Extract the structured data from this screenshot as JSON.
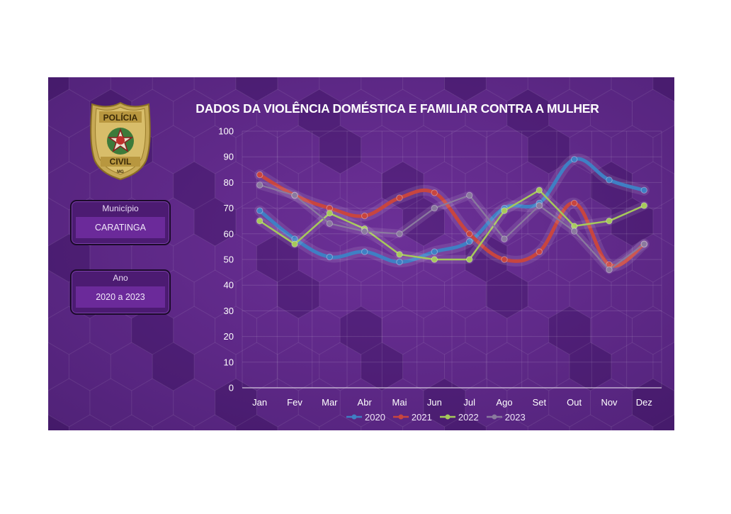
{
  "title": "DADOS DA VIOLÊNCIA DOMÉSTICA E FAMILIAR CONTRA A MULHER",
  "badge": {
    "top_text": "POLÍCIA",
    "bottom_text": "CIVIL",
    "state": "MG"
  },
  "filters": {
    "municipio": {
      "label": "Município",
      "value": "CARATINGA"
    },
    "ano": {
      "label": "Ano",
      "value": "2020 a 2023"
    }
  },
  "colors": {
    "background": "#5b2585",
    "series_2020": "#3f7fc4",
    "series_2021": "#c8453f",
    "series_2022": "#a6c95a",
    "series_2023": "#8a7a9e"
  },
  "chart_data": {
    "type": "line",
    "title": "DADOS DA VIOLÊNCIA DOMÉSTICA E FAMILIAR CONTRA A MULHER",
    "xlabel": "",
    "ylabel": "",
    "categories": [
      "Jan",
      "Fev",
      "Mar",
      "Abr",
      "Mai",
      "Jun",
      "Jul",
      "Ago",
      "Set",
      "Out",
      "Nov",
      "Dez"
    ],
    "ylim": [
      0,
      100
    ],
    "yticks": [
      0,
      10,
      20,
      30,
      40,
      50,
      60,
      70,
      80,
      90,
      100
    ],
    "grid": true,
    "legend_position": "bottom",
    "series": [
      {
        "name": "2020",
        "color": "#3f7fc4",
        "values": [
          69,
          58,
          51,
          53,
          49,
          53,
          57,
          70,
          72,
          89,
          81,
          77
        ]
      },
      {
        "name": "2021",
        "color": "#c8453f",
        "values": [
          83,
          75,
          70,
          67,
          74,
          76,
          60,
          50,
          53,
          72,
          48,
          56
        ]
      },
      {
        "name": "2022",
        "color": "#a6c95a",
        "values": [
          65,
          56,
          68,
          62,
          52,
          50,
          50,
          69,
          77,
          63,
          65,
          71
        ]
      },
      {
        "name": "2023",
        "color": "#8a7a9e",
        "values": [
          79,
          75,
          64,
          61,
          60,
          70,
          75,
          58,
          71,
          61,
          46,
          56
        ]
      }
    ]
  }
}
